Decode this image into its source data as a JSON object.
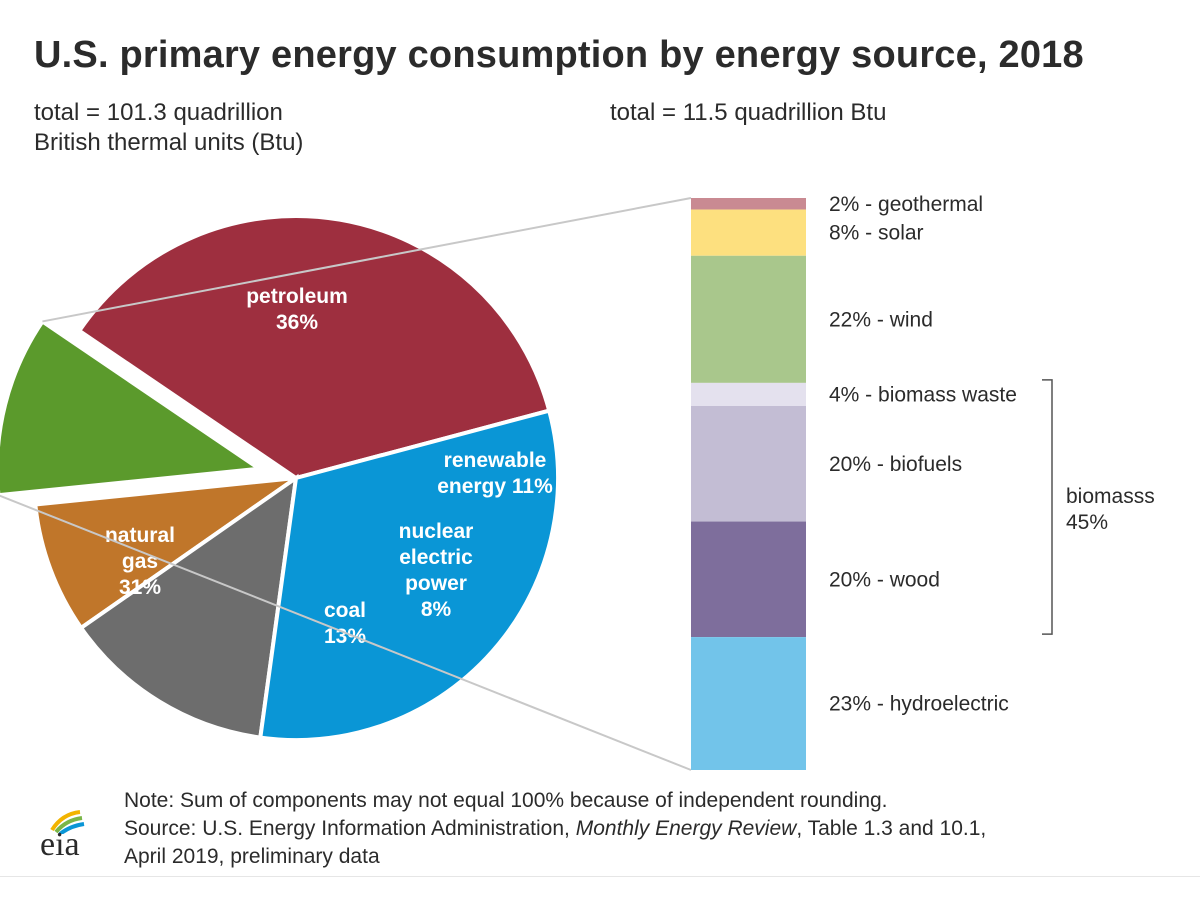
{
  "title": "U.S. primary energy consumption by energy source, 2018",
  "subtitle_left_line1": "total = 101.3 quadrillion",
  "subtitle_left_line2": "British thermal units (Btu)",
  "subtitle_right": "total = 11.5 quadrillion Btu",
  "chart_data": [
    {
      "type": "pie",
      "total_label": "total = 101.3 quadrillion British thermal units (Btu)",
      "slices": [
        {
          "label": "petroleum",
          "value": 36,
          "value_label": "36%",
          "color": "#9e2f3f",
          "label_lines": [
            "petroleum",
            "36%"
          ]
        },
        {
          "label": "renewable energy",
          "value": 11,
          "value_label": "11%",
          "color": "#5b9a2c",
          "exploded": true,
          "label_lines": [
            "renewable",
            "energy 11%"
          ]
        },
        {
          "label": "nuclear electric power",
          "value": 8,
          "value_label": "8%",
          "color": "#c0762a",
          "label_lines": [
            "nuclear",
            "electric",
            "power",
            "8%"
          ]
        },
        {
          "label": "coal",
          "value": 13,
          "value_label": "13%",
          "color": "#6d6d6d",
          "label_lines": [
            "coal",
            "13%"
          ]
        },
        {
          "label": "natural gas",
          "value": 31,
          "value_label": "31%",
          "color": "#0a96d6",
          "label_lines": [
            "natural",
            "gas",
            "31%"
          ]
        }
      ]
    },
    {
      "type": "bar",
      "orientation": "stacked-vertical",
      "total_label": "total = 11.5 quadrillion Btu",
      "segments": [
        {
          "label": "2% - geothermal",
          "value": 2,
          "color": "#c98a92"
        },
        {
          "label": "8% - solar",
          "value": 8,
          "color": "#fde07f"
        },
        {
          "label": "22% - wind",
          "value": 22,
          "color": "#a9c78c"
        },
        {
          "label": "4% - biomass waste",
          "value": 4,
          "color": "#e4e1ee"
        },
        {
          "label": "20% - biofuels",
          "value": 20,
          "color": "#c3bdd4"
        },
        {
          "label": "20% - wood",
          "value": 20,
          "color": "#7e6e9c"
        },
        {
          "label": "23% - hydroelectric",
          "value": 23,
          "color": "#72c4ea"
        }
      ],
      "group_bracket": {
        "label_line1": "biomasss",
        "label_line2": "45%",
        "covers": [
          "4% - biomass waste",
          "20% - biofuels",
          "20% - wood"
        ]
      }
    }
  ],
  "note": "Note: Sum of components may not equal 100% because of independent rounding.",
  "source_prefix": "Source: U.S. Energy Information Administration, ",
  "source_italic": "Monthly Energy Review",
  "source_suffix": ", Table 1.3 and 10.1,",
  "source_line2": "April 2019, preliminary data",
  "logo_text": "eia",
  "logo_icon": "eia-leaf-arcs-icon"
}
